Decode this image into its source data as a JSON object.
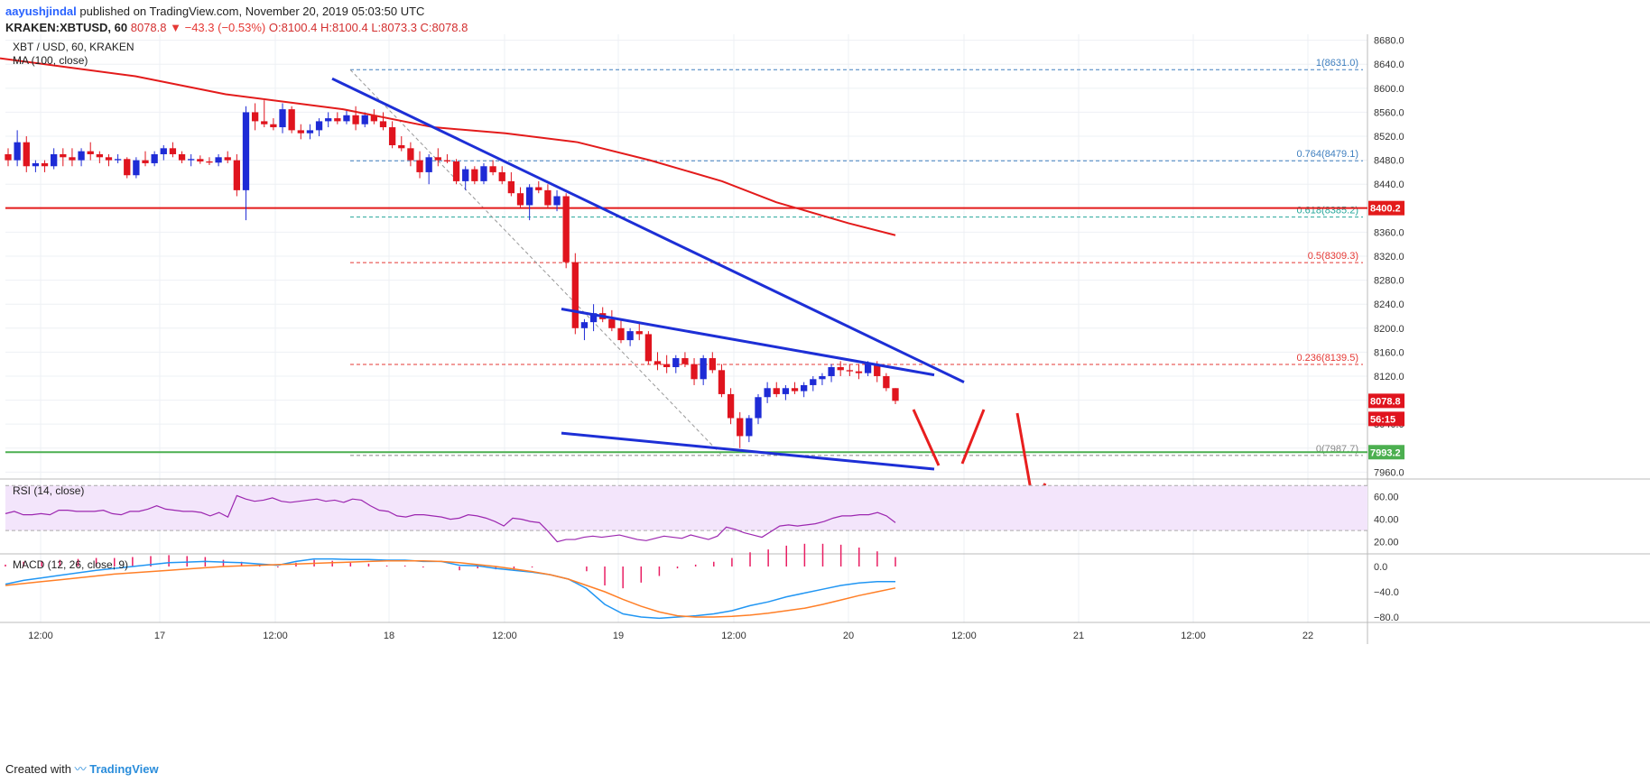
{
  "header": {
    "author": "aayushjindal",
    "published": "published on TradingView.com, November 20, 2019 05:03:50 UTC",
    "symbol": "KRAKEN:XBTUSD,",
    "interval": "60",
    "last": "8078.8",
    "change": "−43.3 (−0.53%)",
    "ohlc": "O:8100.4 H:8100.4 L:8073.3 C:8078.8"
  },
  "legend": {
    "title": "XBT / USD, 60, KRAKEN",
    "ma": "MA (100, close)",
    "rsi": "RSI (14, close)",
    "macd": "MACD (12, 26, close, 9)"
  },
  "footer": {
    "prefix": "Created with",
    "brand": "TradingView"
  },
  "colors": {
    "up": "#1e2bd6",
    "down": "#e0141e",
    "ma": "#e31b1b",
    "trend": "#1d2fd6",
    "support": "#4caf50",
    "resistance": "#e31b1b",
    "macd": "#2196f3",
    "signal": "#ff7f27",
    "hist": "#e91e63",
    "rsi": "#9c27b0",
    "arrow": "#e81e1e",
    "fib": "#e53935",
    "fib_teal": "#26a69a",
    "fib_blue": "#3f7fbf"
  },
  "chart_data": {
    "type": "candlestick",
    "title": "XBT / USD, 60, KRAKEN",
    "price_axis": {
      "ticks": [
        "8680.0",
        "8640.0",
        "8600.0",
        "8560.0",
        "8520.0",
        "8480.0",
        "8440.0",
        "8400.0",
        "8360.0",
        "8320.0",
        "8280.0",
        "8240.0",
        "8200.0",
        "8160.0",
        "8120.0",
        "8080.0",
        "8040.0",
        "8000.0",
        "7960.0"
      ],
      "range": [
        7950,
        8690
      ]
    },
    "time_axis": {
      "labels": [
        "12:00",
        "17",
        "12:00",
        "18",
        "12:00",
        "19",
        "12:00",
        "20",
        "12:00",
        "21",
        "12:00",
        "22"
      ]
    },
    "candles": [
      [
        8490,
        8500,
        8470,
        8480
      ],
      [
        8480,
        8530,
        8470,
        8510
      ],
      [
        8510,
        8520,
        8460,
        8470
      ],
      [
        8470,
        8480,
        8460,
        8475
      ],
      [
        8475,
        8480,
        8460,
        8470
      ],
      [
        8470,
        8500,
        8465,
        8490
      ],
      [
        8490,
        8500,
        8470,
        8485
      ],
      [
        8485,
        8500,
        8470,
        8480
      ],
      [
        8480,
        8500,
        8470,
        8495
      ],
      [
        8495,
        8510,
        8480,
        8490
      ],
      [
        8490,
        8495,
        8475,
        8485
      ],
      [
        8485,
        8490,
        8470,
        8480
      ],
      [
        8480,
        8490,
        8475,
        8482
      ],
      [
        8482,
        8485,
        8450,
        8455
      ],
      [
        8455,
        8485,
        8450,
        8480
      ],
      [
        8480,
        8495,
        8470,
        8475
      ],
      [
        8475,
        8495,
        8470,
        8490
      ],
      [
        8490,
        8505,
        8480,
        8500
      ],
      [
        8500,
        8510,
        8485,
        8490
      ],
      [
        8490,
        8495,
        8475,
        8480
      ],
      [
        8480,
        8490,
        8470,
        8482
      ],
      [
        8482,
        8488,
        8474,
        8478
      ],
      [
        8478,
        8485,
        8472,
        8476
      ],
      [
        8476,
        8490,
        8470,
        8485
      ],
      [
        8485,
        8495,
        8475,
        8480
      ],
      [
        8480,
        8490,
        8420,
        8430
      ],
      [
        8430,
        8570,
        8380,
        8560
      ],
      [
        8560,
        8575,
        8530,
        8545
      ],
      [
        8545,
        8580,
        8535,
        8540
      ],
      [
        8540,
        8550,
        8530,
        8535
      ],
      [
        8535,
        8575,
        8525,
        8565
      ],
      [
        8565,
        8570,
        8525,
        8530
      ],
      [
        8530,
        8540,
        8515,
        8525
      ],
      [
        8525,
        8540,
        8515,
        8530
      ],
      [
        8530,
        8550,
        8520,
        8545
      ],
      [
        8545,
        8560,
        8535,
        8550
      ],
      [
        8550,
        8560,
        8540,
        8545
      ],
      [
        8545,
        8565,
        8540,
        8555
      ],
      [
        8555,
        8570,
        8530,
        8540
      ],
      [
        8540,
        8560,
        8535,
        8555
      ],
      [
        8555,
        8565,
        8540,
        8545
      ],
      [
        8545,
        8560,
        8530,
        8535
      ],
      [
        8535,
        8545,
        8500,
        8505
      ],
      [
        8505,
        8520,
        8495,
        8500
      ],
      [
        8500,
        8510,
        8470,
        8480
      ],
      [
        8480,
        8495,
        8450,
        8460
      ],
      [
        8460,
        8490,
        8440,
        8485
      ],
      [
        8485,
        8500,
        8470,
        8480
      ],
      [
        8480,
        8490,
        8475,
        8478
      ],
      [
        8478,
        8482,
        8440,
        8445
      ],
      [
        8445,
        8470,
        8430,
        8465
      ],
      [
        8465,
        8470,
        8440,
        8445
      ],
      [
        8445,
        8475,
        8440,
        8470
      ],
      [
        8470,
        8480,
        8455,
        8460
      ],
      [
        8460,
        8470,
        8440,
        8445
      ],
      [
        8445,
        8460,
        8420,
        8425
      ],
      [
        8425,
        8435,
        8400,
        8405
      ],
      [
        8405,
        8440,
        8380,
        8435
      ],
      [
        8435,
        8445,
        8425,
        8430
      ],
      [
        8430,
        8440,
        8400,
        8405
      ],
      [
        8405,
        8430,
        8395,
        8420
      ],
      [
        8420,
        8425,
        8300,
        8310
      ],
      [
        8310,
        8325,
        8190,
        8200
      ],
      [
        8200,
        8215,
        8180,
        8210
      ],
      [
        8210,
        8240,
        8195,
        8225
      ],
      [
        8225,
        8235,
        8210,
        8215
      ],
      [
        8215,
        8230,
        8195,
        8200
      ],
      [
        8200,
        8215,
        8175,
        8180
      ],
      [
        8180,
        8200,
        8170,
        8195
      ],
      [
        8195,
        8210,
        8180,
        8190
      ],
      [
        8190,
        8195,
        8140,
        8145
      ],
      [
        8145,
        8160,
        8130,
        8140
      ],
      [
        8140,
        8155,
        8125,
        8135
      ],
      [
        8135,
        8155,
        8125,
        8150
      ],
      [
        8150,
        8160,
        8135,
        8140
      ],
      [
        8140,
        8150,
        8105,
        8115
      ],
      [
        8115,
        8155,
        8105,
        8150
      ],
      [
        8150,
        8160,
        8125,
        8130
      ],
      [
        8130,
        8140,
        8085,
        8090
      ],
      [
        8090,
        8100,
        8040,
        8050
      ],
      [
        8050,
        8060,
        8000,
        8020
      ],
      [
        8020,
        8055,
        8010,
        8050
      ],
      [
        8050,
        8090,
        8040,
        8085
      ],
      [
        8085,
        8110,
        8075,
        8100
      ],
      [
        8100,
        8110,
        8085,
        8090
      ],
      [
        8090,
        8105,
        8080,
        8100
      ],
      [
        8100,
        8110,
        8090,
        8095
      ],
      [
        8095,
        8110,
        8085,
        8105
      ],
      [
        8105,
        8120,
        8095,
        8115
      ],
      [
        8115,
        8125,
        8105,
        8120
      ],
      [
        8120,
        8140,
        8110,
        8135
      ],
      [
        8135,
        8145,
        8120,
        8130
      ],
      [
        8130,
        8140,
        8120,
        8128
      ],
      [
        8128,
        8140,
        8115,
        8125
      ],
      [
        8125,
        8145,
        8120,
        8140
      ],
      [
        8140,
        8145,
        8110,
        8120
      ],
      [
        8120,
        8125,
        8095,
        8100
      ],
      [
        8100,
        8100,
        8073.3,
        8078.8
      ]
    ],
    "ma_points": [
      [
        0,
        8650
      ],
      [
        150,
        8620
      ],
      [
        250,
        8590
      ],
      [
        380,
        8565
      ],
      [
        480,
        8535
      ],
      [
        560,
        8525
      ],
      [
        640,
        8510
      ],
      [
        720,
        8480
      ],
      [
        800,
        8445
      ],
      [
        860,
        8410
      ],
      [
        940,
        8375
      ],
      [
        992,
        8355
      ]
    ],
    "horizontal_levels": [
      {
        "price": 8400.2,
        "kind": "resistance",
        "label": "8400.2"
      },
      {
        "price": 7993.2,
        "kind": "support",
        "label": "7993.2"
      }
    ],
    "fib_levels": [
      {
        "price": 8631.0,
        "label": "1(8631.0)"
      },
      {
        "price": 8479.1,
        "label": "0.764(8479.1)"
      },
      {
        "price": 8385.2,
        "label": "0.618(8385.2)"
      },
      {
        "price": 8309.3,
        "label": "0.5(8309.3)"
      },
      {
        "price": 8139.5,
        "label": "0.236(8139.5)"
      },
      {
        "price": 7987.7,
        "label": "0(7987.7)"
      }
    ],
    "last_price": {
      "label": "8078.8",
      "timer": "56:15",
      "price": 8078.8
    },
    "rsi": {
      "ticks": [
        "60.00",
        "40.00",
        "20.00"
      ],
      "values": [
        45,
        47,
        44,
        44,
        45,
        44,
        48,
        48,
        47,
        47,
        47,
        48,
        45,
        44,
        47,
        47,
        49,
        52,
        49,
        48,
        47,
        47,
        46,
        43,
        46,
        42,
        61,
        58,
        56,
        57,
        59,
        56,
        55,
        56,
        57,
        58,
        56,
        57,
        55,
        58,
        57,
        52,
        48,
        47,
        43,
        42,
        44,
        44,
        43,
        42,
        40,
        41,
        44,
        43,
        41,
        38,
        34,
        41,
        40,
        38,
        37,
        29,
        20,
        22,
        22,
        24,
        25,
        24,
        25,
        26,
        24,
        22,
        21,
        23,
        25,
        24,
        23,
        26,
        24,
        22,
        25,
        33,
        31,
        28,
        26,
        24,
        29,
        34,
        35,
        34,
        35,
        36,
        38,
        41,
        43,
        43,
        44,
        44,
        46,
        43,
        37
      ]
    },
    "macd": {
      "ticks": [
        "0.0",
        "−40.0",
        "−80.0"
      ],
      "macd": [
        -28,
        -22,
        -18,
        -14,
        -10,
        -6,
        -3,
        0,
        3,
        6,
        7,
        8,
        7,
        6,
        4,
        2,
        8,
        12,
        12,
        11,
        11,
        10,
        10,
        8,
        8,
        2,
        1,
        -3,
        -6,
        -9,
        -13,
        -20,
        -35,
        -60,
        -75,
        -80,
        -82,
        -80,
        -78,
        -75,
        -70,
        -62,
        -56,
        -48,
        -42,
        -36,
        -30,
        -26,
        -24,
        -24
      ],
      "signal": [
        -30,
        -27,
        -24,
        -21,
        -18,
        -15,
        -12,
        -10,
        -8,
        -6,
        -4,
        -2,
        0,
        1,
        2,
        3,
        4,
        5,
        6,
        7,
        8,
        9,
        9,
        9,
        8,
        6,
        3,
        0,
        -4,
        -8,
        -13,
        -20,
        -30,
        -40,
        -52,
        -63,
        -72,
        -78,
        -80,
        -80,
        -79,
        -77,
        -74,
        -70,
        -66,
        -60,
        -53,
        -46,
        -40,
        -34
      ]
    },
    "time_grid_labels_px": null
  }
}
